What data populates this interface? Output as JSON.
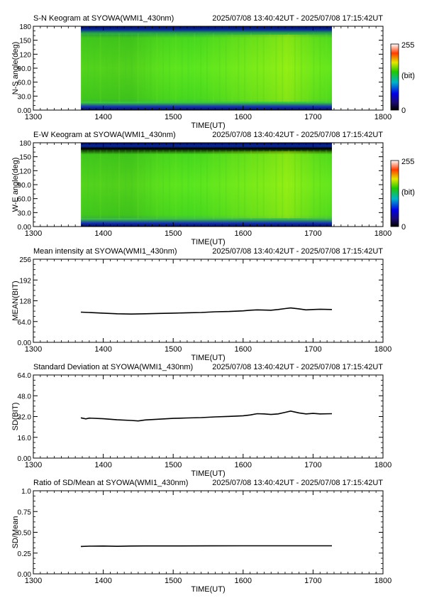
{
  "chart_data": [
    {
      "type": "heatmap",
      "title": "S-N Keogram at SYOWA(WMI1_430nm)",
      "subtitle": "2025/07/08 13:40:42UT - 2025/07/08 17:15:42UT",
      "xlabel": "TIME(UT)",
      "ylabel": "N-S angle(deg)",
      "xlim": [
        1300,
        1800
      ],
      "ylim": [
        0,
        180
      ],
      "xticks": [
        "1300",
        "1400",
        "1500",
        "1600",
        "1700",
        "1800"
      ],
      "yticks": [
        "0.00",
        "30.0",
        "60.0",
        "90.0",
        "120",
        "150",
        "180"
      ],
      "data_range_x": [
        1368,
        1727
      ],
      "colorbar": {
        "min": "0",
        "max": "255",
        "label": "(bit)"
      },
      "colors": {
        "edge": "#0a1e8c",
        "mid": "#55e21e",
        "bright": "#c8e61e"
      }
    },
    {
      "type": "heatmap",
      "title": "E-W Keogram at SYOWA(WMI1_430nm)",
      "subtitle": "2025/07/08 13:40:42UT - 2025/07/08 17:15:42UT",
      "xlabel": "TIME(UT)",
      "ylabel": "W-E angle(deg)",
      "xlim": [
        1300,
        1800
      ],
      "ylim": [
        0,
        180
      ],
      "xticks": [
        "1300",
        "1400",
        "1500",
        "1600",
        "1700",
        "1800"
      ],
      "yticks": [
        "0.00",
        "30.0",
        "60.0",
        "90.0",
        "120",
        "150",
        "180"
      ],
      "data_range_x": [
        1368,
        1727
      ],
      "colorbar": {
        "min": "0",
        "max": "255",
        "label": "(bit)"
      },
      "colors": {
        "edge": "#0a1e8c",
        "mid": "#55e21e",
        "bright": "#c8e61e"
      }
    },
    {
      "type": "line",
      "title": "Mean intensity at SYOWA(WMI1_430nm)",
      "subtitle": "2025/07/08 13:40:42UT - 2025/07/08 17:15:42UT",
      "xlabel": "TIME(UT)",
      "ylabel": "MEAN(BIT)",
      "xlim": [
        1300,
        1800
      ],
      "ylim": [
        0,
        256
      ],
      "xticks": [
        "1300",
        "1400",
        "1500",
        "1600",
        "1700",
        "1800"
      ],
      "yticks": [
        "0.00",
        "64.0",
        "128",
        "192",
        "256"
      ],
      "x": [
        1368,
        1380,
        1400,
        1420,
        1440,
        1460,
        1480,
        1500,
        1520,
        1540,
        1560,
        1580,
        1600,
        1610,
        1620,
        1640,
        1650,
        1660,
        1668,
        1680,
        1690,
        1700,
        1710,
        1727
      ],
      "y": [
        93,
        92,
        90,
        88,
        87,
        88,
        89,
        90,
        91,
        92,
        94,
        95,
        97,
        99,
        100,
        99,
        101,
        104,
        106,
        103,
        100,
        101,
        102,
        101
      ]
    },
    {
      "type": "line",
      "title": "Standard Deviation at SYOWA(WMI1_430nm)",
      "subtitle": "2025/07/08 13:40:42UT - 2025/07/08 17:15:42UT",
      "xlabel": "TIME(UT)",
      "ylabel": "SD(BIT)",
      "xlim": [
        1300,
        1800
      ],
      "ylim": [
        0,
        64
      ],
      "xticks": [
        "1300",
        "1400",
        "1500",
        "1600",
        "1700",
        "1800"
      ],
      "yticks": [
        "0.00",
        "16.0",
        "32.0",
        "48.0",
        "64.0"
      ],
      "x": [
        1368,
        1375,
        1380,
        1400,
        1420,
        1440,
        1450,
        1460,
        1480,
        1500,
        1520,
        1540,
        1560,
        1580,
        1600,
        1610,
        1620,
        1630,
        1640,
        1650,
        1660,
        1668,
        1680,
        1690,
        1700,
        1710,
        1727
      ],
      "y": [
        31.0,
        30.2,
        30.8,
        30.3,
        29.5,
        29.0,
        28.6,
        29.4,
        30.0,
        30.6,
        30.9,
        31.2,
        31.7,
        32.1,
        32.6,
        33.2,
        34.2,
        34.0,
        33.6,
        34.0,
        35.2,
        36.2,
        34.8,
        34.0,
        34.4,
        34.0,
        34.2
      ]
    },
    {
      "type": "line",
      "title": "Ratio of SD/Mean at SYOWA(WMI1_430nm)",
      "subtitle": "2025/07/08 13:40:42UT - 2025/07/08 17:15:42UT",
      "xlabel": "TIME(UT)",
      "ylabel": "SD/Mean",
      "xlim": [
        1300,
        1800
      ],
      "ylim": [
        0,
        1
      ],
      "xticks": [
        "1300",
        "1400",
        "1500",
        "1600",
        "1700",
        "1800"
      ],
      "yticks": [
        "0.00",
        "0.25",
        "0.50",
        "0.75",
        "1.0"
      ],
      "x": [
        1368,
        1380,
        1400,
        1420,
        1440,
        1460,
        1500,
        1550,
        1600,
        1650,
        1700,
        1727
      ],
      "y": [
        0.33,
        0.333,
        0.335,
        0.332,
        0.335,
        0.336,
        0.336,
        0.337,
        0.338,
        0.338,
        0.338,
        0.338
      ]
    }
  ]
}
